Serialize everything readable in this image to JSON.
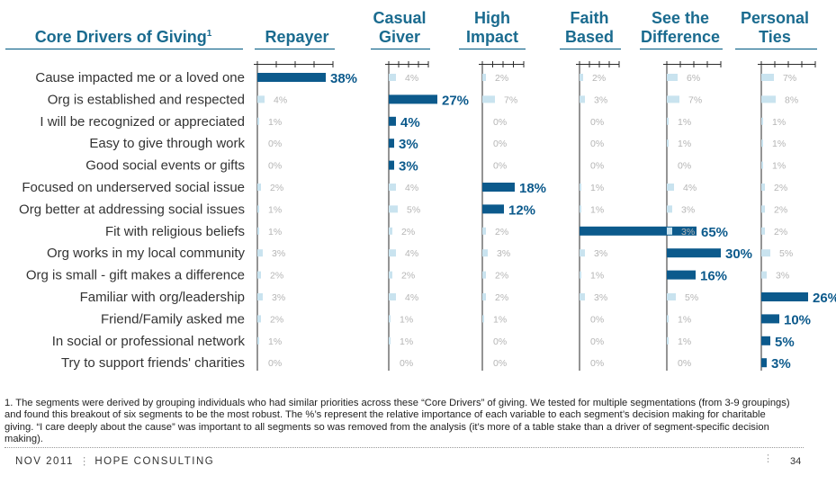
{
  "chart_data": {
    "type": "bar",
    "title": "Core Drivers of Giving",
    "title_superscript": "1",
    "segments": [
      "Repayer",
      "Casual Giver",
      "High Impact",
      "Faith Based",
      "See the Difference",
      "Personal Ties"
    ],
    "segment_header_lines": [
      [
        "Repayer"
      ],
      [
        "Casual",
        "Giver"
      ],
      [
        "High",
        "Impact"
      ],
      [
        "Faith",
        "Based"
      ],
      [
        "See the",
        "Difference"
      ],
      [
        "Personal",
        "Ties"
      ]
    ],
    "categories": [
      "Cause impacted me or a loved one",
      "Org is established and respected",
      "I will be recognized or appreciated",
      "Easy to give through work",
      "Good social events or gifts",
      "Focused on underserved social issue",
      "Org better at addressing social issues",
      "Fit with religious beliefs",
      "Org works in my local community",
      "Org is small - gift makes a difference",
      "Familiar with org/leadership",
      "Friend/Family asked me",
      "In social or professional network",
      "Try to support friends' charities"
    ],
    "series": [
      {
        "name": "Repayer",
        "values": [
          38,
          4,
          1,
          0,
          0,
          2,
          1,
          1,
          3,
          2,
          3,
          2,
          1,
          0
        ],
        "highlight": [
          0
        ]
      },
      {
        "name": "Casual Giver",
        "values": [
          4,
          27,
          4,
          3,
          3,
          4,
          5,
          2,
          4,
          2,
          4,
          1,
          1,
          0
        ],
        "highlight": [
          1,
          2,
          3,
          4
        ]
      },
      {
        "name": "High Impact",
        "values": [
          2,
          7,
          0,
          0,
          0,
          18,
          12,
          2,
          3,
          2,
          2,
          1,
          0,
          0
        ],
        "highlight": [
          5,
          6
        ]
      },
      {
        "name": "Faith Based",
        "values": [
          2,
          3,
          0,
          0,
          0,
          1,
          1,
          65,
          3,
          1,
          3,
          0,
          0,
          0
        ],
        "highlight": [
          7
        ]
      },
      {
        "name": "See the Difference",
        "values": [
          6,
          7,
          1,
          1,
          0,
          4,
          3,
          3,
          30,
          16,
          5,
          1,
          1,
          0
        ],
        "highlight": [
          8,
          9
        ]
      },
      {
        "name": "Personal Ties",
        "values": [
          7,
          8,
          1,
          1,
          1,
          2,
          2,
          2,
          5,
          3,
          26,
          10,
          5,
          3
        ],
        "highlight": [
          10,
          11,
          12,
          13
        ]
      }
    ],
    "value_suffix": "%",
    "colors": {
      "highlight": "#0c5a8c",
      "muted": "#c9e3ef",
      "header": "#1a6b8f",
      "axis": "#2a2a2a"
    }
  },
  "footnote": "1. The segments were derived by grouping individuals who had similar priorities across these “Core Drivers” of giving. We tested for multiple segmentations (from 3-9 groupings) and found this breakout of six segments to be the most robust. The %’s represent the relative importance of each variable to each segment’s decision making for charitable giving. “I care deeply about the cause” was important to all segments so was removed from the analysis (it’s more of a table stake than a driver of segment-specific decision making).",
  "footer": {
    "date": "NOV 2011",
    "company": "HOPE CONSULTING",
    "page": "34"
  }
}
